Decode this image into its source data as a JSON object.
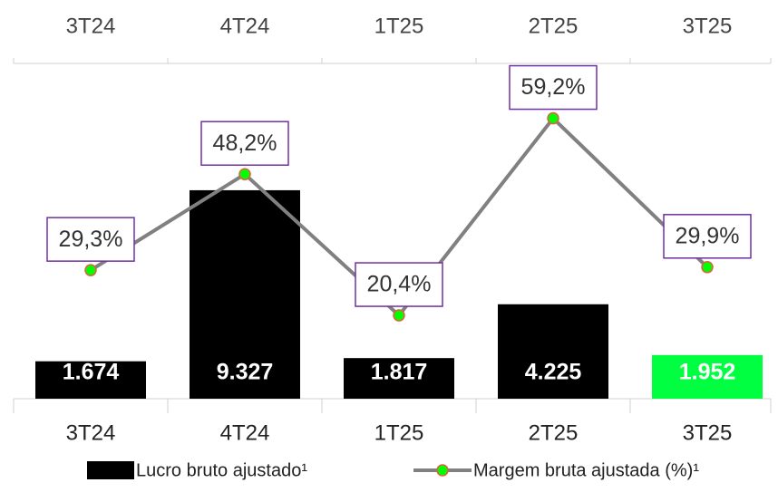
{
  "chart_data": {
    "type": "combo",
    "categories": [
      "3T24",
      "4T24",
      "1T25",
      "2T25",
      "3T25"
    ],
    "series": [
      {
        "name": "Lucro bruto ajustado¹",
        "type": "bar",
        "color": "#000000",
        "colors": [
          "#000000",
          "#000000",
          "#000000",
          "#000000",
          "#00ff40"
        ],
        "values": [
          1674,
          9327,
          1817,
          4225,
          1952
        ],
        "value_labels": [
          "1.674",
          "9.327",
          "1.817",
          "4.225",
          "1.952"
        ]
      },
      {
        "name": "Margem bruta ajustada (%)¹",
        "type": "line",
        "axis": "y2",
        "color": "#808080",
        "marker_color": "#00ff00",
        "marker_edge_color": "#e06040",
        "label_border_color": "#7030a0",
        "values": [
          29.3,
          48.2,
          20.4,
          59.2,
          29.9
        ],
        "value_labels": [
          "29,3%",
          "48,2%",
          "20,4%",
          "59,2%",
          "29,9%"
        ]
      }
    ],
    "ylim": [
      0,
      15000
    ],
    "y2lim": [
      4,
      70
    ]
  }
}
